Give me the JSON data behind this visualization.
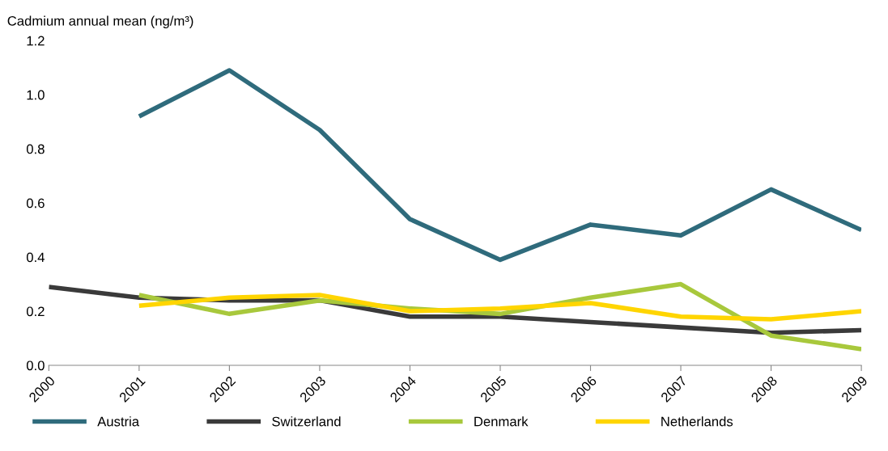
{
  "chart_data": {
    "type": "line",
    "ylabel": "Cadmium annual mean (ng/m³)",
    "categories": [
      "2000",
      "2001",
      "2002",
      "2003",
      "2004",
      "2005",
      "2006",
      "2007",
      "2008",
      "2009"
    ],
    "ylim": [
      0,
      1.2
    ],
    "yticks": [
      {
        "value": 0,
        "label": "0.0"
      },
      0.2,
      0.4,
      0.6,
      0.8,
      {
        "value": 1,
        "label": "1.0"
      },
      1.2
    ],
    "grid": false,
    "legend": "bottom",
    "marker": "none",
    "line_style": "solid",
    "series": [
      {
        "name": "Austria",
        "color": "#2f6b7c",
        "values": [
          null,
          0.92,
          1.09,
          0.87,
          0.54,
          0.39,
          0.52,
          0.48,
          0.65,
          0.5
        ]
      },
      {
        "name": "Switzerland",
        "color": "#3a3a3a",
        "values": [
          0.29,
          0.25,
          0.24,
          0.24,
          0.18,
          0.18,
          0.16,
          0.14,
          0.12,
          0.13
        ]
      },
      {
        "name": "Denmark",
        "color": "#a8c83c",
        "values": [
          null,
          0.26,
          0.19,
          0.24,
          0.21,
          0.19,
          0.25,
          0.3,
          0.11,
          0.06
        ]
      },
      {
        "name": "Netherlands",
        "color": "#ffd500",
        "values": [
          null,
          0.22,
          0.25,
          0.26,
          0.2,
          0.21,
          0.23,
          0.18,
          0.17,
          0.2
        ]
      }
    ]
  }
}
